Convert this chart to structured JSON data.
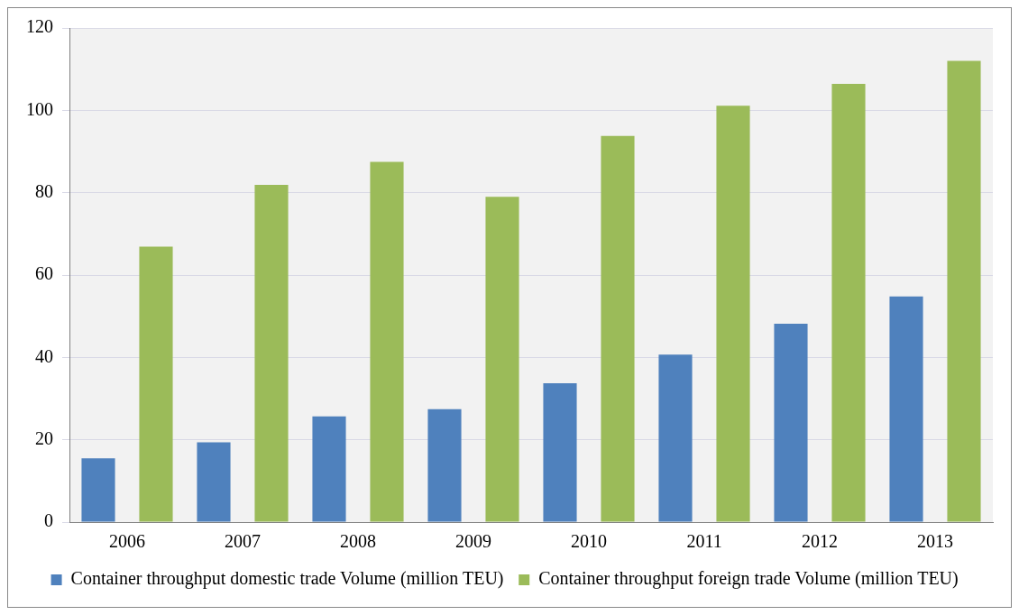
{
  "chart_data": {
    "type": "bar",
    "categories": [
      "2006",
      "2007",
      "2008",
      "2009",
      "2010",
      "2011",
      "2012",
      "2013"
    ],
    "series": [
      {
        "name": "Container throughput domestic trade Volume (million TEU)",
        "color": "#4f81bd",
        "values": [
          15.5,
          19.4,
          25.7,
          27.4,
          33.7,
          40.7,
          48.2,
          54.8
        ]
      },
      {
        "name": "Container throughput foreign trade Volume (million TEU)",
        "color": "#9bbb59",
        "values": [
          66.9,
          81.9,
          87.5,
          79.0,
          93.8,
          101.1,
          106.4,
          112.0
        ]
      }
    ],
    "ylim": [
      0,
      120
    ],
    "yticks": [
      0,
      20,
      40,
      60,
      80,
      100,
      120
    ],
    "grid": "y",
    "legend": "bottom"
  }
}
